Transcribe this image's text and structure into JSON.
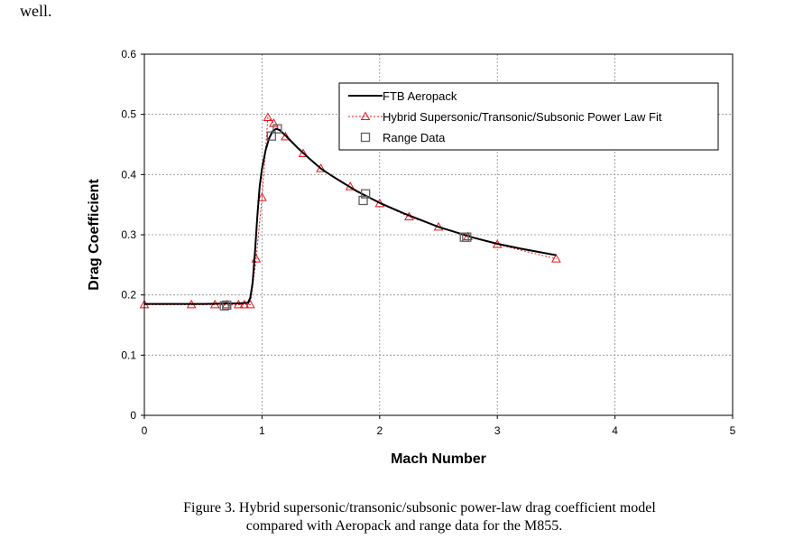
{
  "page": {
    "top_text": "well.",
    "caption_line1": "Figure 3. Hybrid supersonic/transonic/subsonic power-law drag coefficient model",
    "caption_line2": "compared with Aeropack and range data for the M855."
  },
  "chart_data": {
    "type": "line",
    "title": "",
    "xlabel": "Mach Number",
    "ylabel": "Drag Coefficient",
    "xlim": [
      0,
      5
    ],
    "ylim": [
      0,
      0.6
    ],
    "xticks": [
      0,
      1,
      2,
      3,
      4,
      5
    ],
    "yticks": [
      0,
      0.1,
      0.2,
      0.3,
      0.4,
      0.5,
      0.6
    ],
    "ytick_labels": [
      "0",
      "0.1",
      "0.2",
      "0.3",
      "0.4",
      "0.5",
      "0.6"
    ],
    "grid": true,
    "legend_position": "top-right",
    "series": [
      {
        "name": "FTB Aeropack",
        "style": "solid-line",
        "color": "#000000",
        "x": [
          0,
          0.5,
          0.8,
          0.88,
          0.9,
          0.92,
          0.94,
          0.96,
          0.98,
          1.0,
          1.03,
          1.06,
          1.09,
          1.12,
          1.15,
          1.2,
          1.3,
          1.4,
          1.5,
          1.6,
          1.8,
          2.0,
          2.2,
          2.5,
          2.8,
          3.0,
          3.2,
          3.5
        ],
        "y": [
          0.185,
          0.185,
          0.186,
          0.187,
          0.195,
          0.22,
          0.27,
          0.33,
          0.38,
          0.41,
          0.44,
          0.46,
          0.472,
          0.476,
          0.474,
          0.465,
          0.445,
          0.427,
          0.41,
          0.397,
          0.373,
          0.353,
          0.336,
          0.313,
          0.295,
          0.285,
          0.277,
          0.266
        ]
      },
      {
        "name": "Hybrid Supersonic/Transonic/Subsonic  Power Law Fit",
        "style": "dotted-line-triangles",
        "color": "#e8141c",
        "x": [
          0,
          0.4,
          0.6,
          0.7,
          0.8,
          0.85,
          0.9,
          0.95,
          1.0,
          1.05,
          1.1,
          1.2,
          1.35,
          1.5,
          1.75,
          2.0,
          2.25,
          2.5,
          2.75,
          3.0,
          3.5
        ],
        "y": [
          0.184,
          0.184,
          0.184,
          0.184,
          0.184,
          0.184,
          0.184,
          0.26,
          0.362,
          0.495,
          0.485,
          0.463,
          0.435,
          0.41,
          0.38,
          0.352,
          0.33,
          0.313,
          0.297,
          0.284,
          0.26
        ]
      },
      {
        "name": "Range Data",
        "style": "square-markers",
        "color": "#606060",
        "x": [
          0.68,
          0.7,
          1.08,
          1.13,
          1.86,
          1.88,
          2.72,
          2.74
        ],
        "y": [
          0.182,
          0.183,
          0.464,
          0.476,
          0.357,
          0.368,
          0.296,
          0.296
        ]
      }
    ]
  }
}
